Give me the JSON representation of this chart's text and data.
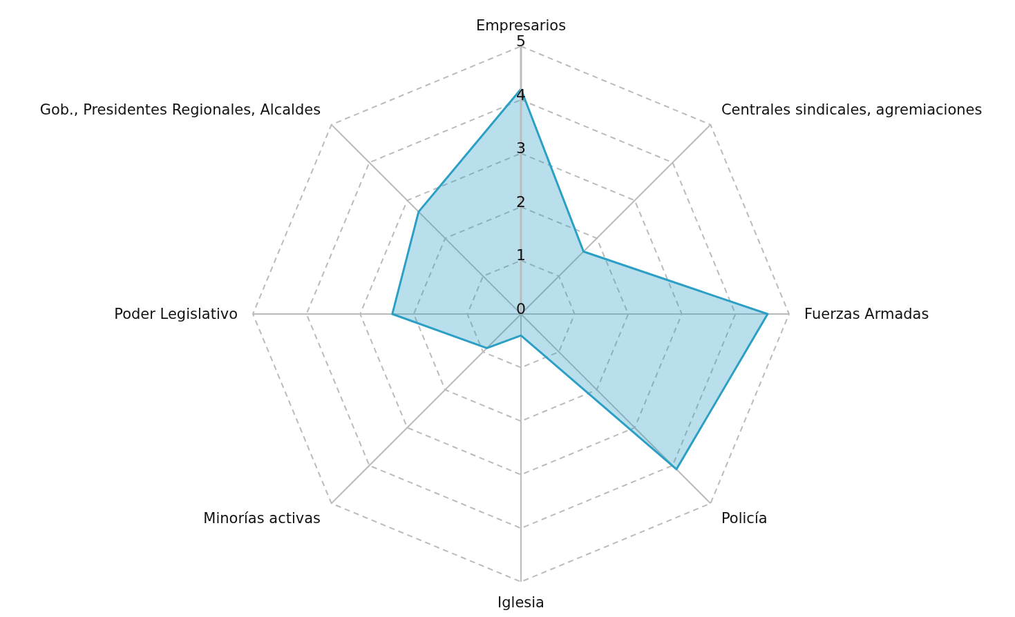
{
  "chart_data": {
    "type": "radar",
    "categories": [
      "Empresarios",
      "Centrales sindicales, agremiaciones",
      "Fuerzas Armadas",
      "Policía",
      "Iglesia",
      "Minorías activas",
      "Poder Legislativo",
      "Gob., Presidentes Regionales, Alcaldes"
    ],
    "series": [
      {
        "color": "#2b9fc4",
        "values": [
          4.2,
          1.65,
          4.6,
          4.1,
          0.4,
          0.9,
          2.4,
          2.7
        ]
      }
    ],
    "ylim": [
      0,
      5
    ],
    "yticks": [
      0,
      1,
      2,
      3,
      4,
      5
    ],
    "grid": true
  }
}
